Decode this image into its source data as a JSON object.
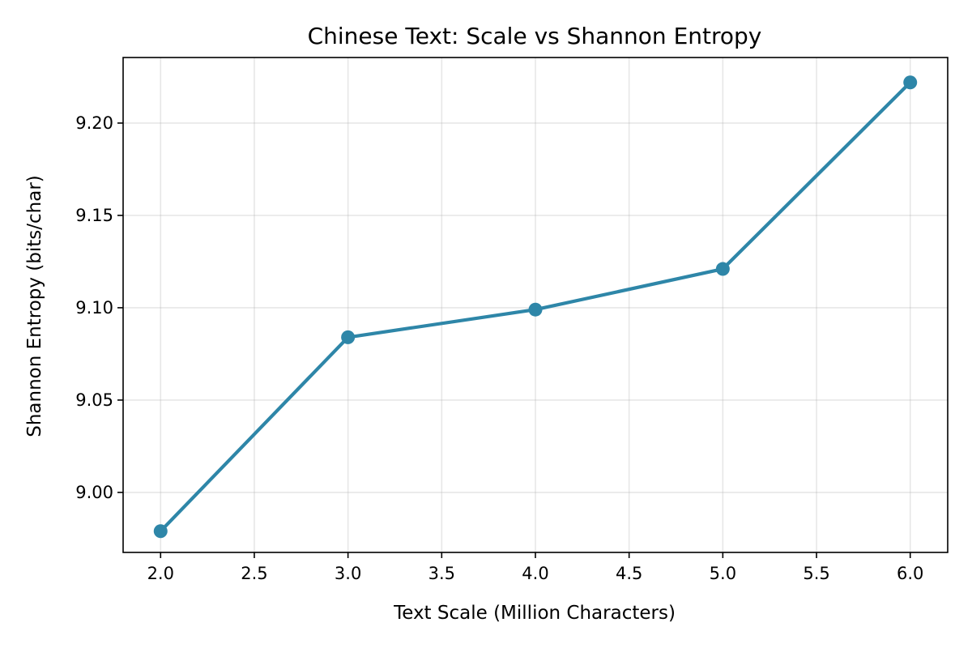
{
  "chart_data": {
    "type": "line",
    "title": "Chinese Text: Scale vs Shannon Entropy",
    "xlabel": "Text Scale (Million Characters)",
    "ylabel": "Shannon Entropy (bits/char)",
    "xlim": [
      1.8,
      6.2
    ],
    "ylim": [
      8.9675,
      9.2355
    ],
    "x_ticks": [
      2.0,
      2.5,
      3.0,
      3.5,
      4.0,
      4.5,
      5.0,
      5.5,
      6.0
    ],
    "y_ticks": [
      9.0,
      9.05,
      9.1,
      9.15,
      9.2
    ],
    "x_tick_labels": [
      "2.0",
      "2.5",
      "3.0",
      "3.5",
      "4.0",
      "4.5",
      "5.0",
      "5.5",
      "6.0"
    ],
    "y_tick_labels": [
      "9.00",
      "9.05",
      "9.10",
      "9.15",
      "9.20"
    ],
    "grid": true,
    "series": [
      {
        "color": "#2e86a8",
        "marker": "circle",
        "x": [
          2.0,
          3.0,
          4.0,
          5.0,
          6.0
        ],
        "y": [
          8.979,
          9.084,
          9.099,
          9.121,
          9.222
        ]
      }
    ]
  }
}
